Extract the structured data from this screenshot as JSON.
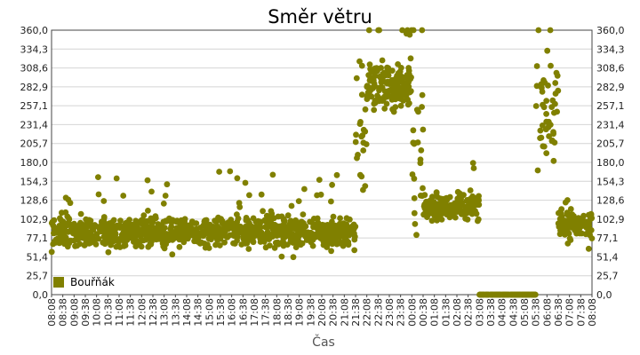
{
  "chart_data": {
    "type": "scatter",
    "title": "Směr větru",
    "xlabel": "Čas",
    "ylabel": "°",
    "ylim": [
      0,
      360
    ],
    "y_ticks": [
      "0,0",
      "25,7",
      "51,4",
      "77,1",
      "102,9",
      "128,6",
      "154,3",
      "180,0",
      "205,7",
      "231,4",
      "257,1",
      "282,9",
      "308,6",
      "334,3",
      "360,0"
    ],
    "x_ticks": [
      "08:08",
      "08:38",
      "09:08",
      "09:38",
      "10:08",
      "10:38",
      "11:08",
      "11:38",
      "12:08",
      "12:38",
      "13:08",
      "13:38",
      "14:08",
      "14:38",
      "15:08",
      "15:38",
      "16:08",
      "16:38",
      "17:08",
      "17:38",
      "18:08",
      "18:38",
      "19:08",
      "19:38",
      "20:08",
      "20:38",
      "21:08",
      "21:38",
      "22:08",
      "22:38",
      "23:08",
      "23:38",
      "00:08",
      "00:38",
      "01:08",
      "01:38",
      "02:08",
      "02:38",
      "03:08",
      "03:38",
      "04:08",
      "04:38",
      "05:08",
      "05:38",
      "06:08",
      "06:38",
      "07:08",
      "07:38",
      "08:08"
    ],
    "grid": true,
    "legend": "bottom-left",
    "series": [
      {
        "name": "Bouřňák",
        "color": "#808000",
        "segments": [
          {
            "from": 0,
            "to": 27,
            "center": 85,
            "spread": 30,
            "density": 36
          },
          {
            "from": 27,
            "to": 28,
            "center": 220,
            "spread": 140,
            "density": 22
          },
          {
            "from": 28,
            "to": 32,
            "center": 285,
            "spread": 45,
            "density": 40
          },
          {
            "from": 32,
            "to": 33,
            "center": 180,
            "spread": 160,
            "density": 24
          },
          {
            "from": 33,
            "to": 38,
            "center": 120,
            "spread": 25,
            "density": 34
          },
          {
            "from": 38,
            "to": 43,
            "center": 0,
            "spread": 0,
            "density": 30
          },
          {
            "from": 43,
            "to": 45,
            "center": 250,
            "spread": 110,
            "density": 24
          },
          {
            "from": 45,
            "to": 48,
            "center": 95,
            "spread": 28,
            "density": 34
          }
        ]
      }
    ]
  }
}
